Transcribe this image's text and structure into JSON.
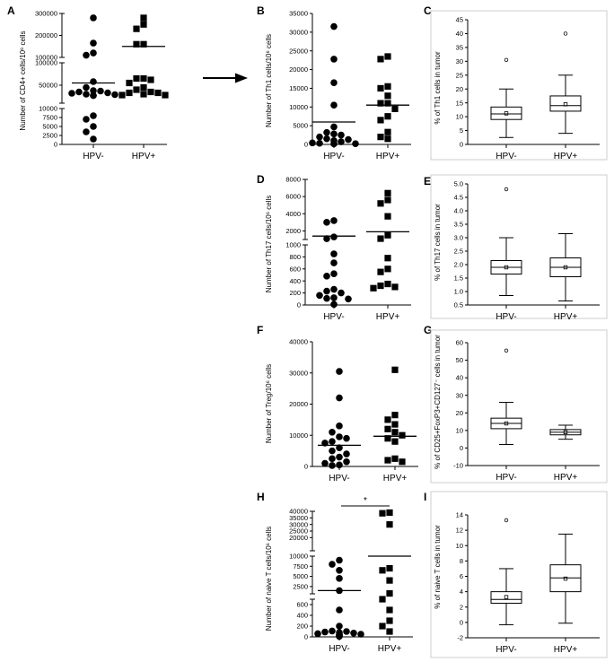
{
  "colors": {
    "ink": "#000000",
    "frame": "#cccccc"
  },
  "arrow": true,
  "chart_data": [
    {
      "panel": "A",
      "type": "scatter",
      "ylabel": "Number of CD4+ cells/10⁶ cells",
      "categories": [
        "HPV-",
        "HPV+"
      ],
      "y_axis": {
        "type": "broken",
        "segments": [
          {
            "range": [
              0,
              10000
            ],
            "ticks": [
              0,
              2500,
              5000,
              7500,
              10000
            ],
            "tick_labels": [
              "0",
              "2500",
              "5000",
              "7500",
              "10000"
            ]
          },
          {
            "range": [
              10000,
              100000
            ],
            "ticks": [
              50000,
              100000
            ],
            "tick_labels": [
              "50000",
              "100000"
            ]
          },
          {
            "range": [
              100000,
              300000
            ],
            "ticks": [
              100000,
              200000,
              300000
            ],
            "tick_labels": [
              "100000",
              "200000",
              "300000"
            ]
          }
        ]
      },
      "series": [
        {
          "category": "HPV-",
          "marker": "circle",
          "values": [
            280000,
            165000,
            120000,
            110000,
            58000,
            45000,
            38000,
            37000,
            35000,
            33000,
            32000,
            30000,
            29000,
            27000,
            27000,
            8000,
            7000,
            5000,
            3500,
            1500
          ]
        },
        {
          "category": "HPV+",
          "marker": "square",
          "values": [
            280000,
            250000,
            230000,
            160000,
            160000,
            65000,
            65000,
            62000,
            55000,
            45000,
            40000,
            35000,
            33000,
            33000,
            30000,
            28000,
            28000
          ]
        }
      ],
      "means": [
        55000,
        150000
      ]
    },
    {
      "panel": "B",
      "type": "scatter",
      "ylabel": "Number of Th1 cells/10⁶ cells",
      "categories": [
        "HPV-",
        "HPV+"
      ],
      "ylim": [
        0,
        35000
      ],
      "ticks": [
        0,
        5000,
        10000,
        15000,
        20000,
        25000,
        30000,
        35000
      ],
      "series": [
        {
          "category": "HPV-",
          "marker": "circle",
          "values": [
            31500,
            22800,
            16500,
            10500,
            4700,
            3200,
            2800,
            2500,
            2000,
            1500,
            1300,
            1000,
            700,
            400,
            300,
            200,
            150
          ]
        },
        {
          "category": "HPV+",
          "marker": "square",
          "values": [
            23500,
            22800,
            15500,
            15000,
            13000,
            11000,
            11000,
            9500,
            7500,
            6500,
            3300,
            2000,
            1500
          ]
        }
      ],
      "means": [
        6000,
        10500
      ]
    },
    {
      "panel": "C",
      "type": "box",
      "ylabel": "% of Th1 cells in tumor",
      "categories": [
        "HPV-",
        "HPV+"
      ],
      "ylim": [
        0,
        45
      ],
      "ticks": [
        0,
        5,
        10,
        15,
        20,
        25,
        30,
        35,
        40,
        45
      ],
      "boxes": [
        {
          "category": "HPV-",
          "whisker_low": 2.5,
          "q1": 9,
          "median": 11,
          "q3": 13.5,
          "whisker_high": 20,
          "mean": 11.2,
          "outliers": [
            30.5
          ]
        },
        {
          "category": "HPV+",
          "whisker_low": 4,
          "q1": 12,
          "median": 14,
          "q3": 17.5,
          "whisker_high": 25,
          "mean": 14.5,
          "outliers": [
            40
          ]
        }
      ]
    },
    {
      "panel": "D",
      "type": "scatter",
      "ylabel": "Number of Th17 cells/10⁶ cells",
      "categories": [
        "HPV-",
        "HPV+"
      ],
      "y_axis": {
        "type": "broken",
        "segments": [
          {
            "range": [
              0,
              1000
            ],
            "ticks": [
              0,
              200,
              400,
              600,
              800,
              1000
            ],
            "tick_labels": [
              "0",
              "200",
              "400",
              "600",
              "800",
              "1000"
            ]
          },
          {
            "range": [
              1000,
              8000
            ],
            "ticks": [
              2000,
              4000,
              6000,
              8000
            ],
            "tick_labels": [
              "2000",
              "4000",
              "6000",
              "8000"
            ]
          }
        ]
      },
      "series": [
        {
          "category": "HPV-",
          "marker": "circle",
          "values": [
            3200,
            3000,
            1300,
            1100,
            850,
            700,
            520,
            480,
            260,
            230,
            200,
            160,
            120,
            110,
            100,
            10
          ]
        },
        {
          "category": "HPV+",
          "marker": "square",
          "values": [
            6400,
            5600,
            5200,
            3700,
            1500,
            1100,
            780,
            600,
            550,
            350,
            320,
            300,
            280
          ]
        }
      ],
      "means": [
        1400,
        1900
      ]
    },
    {
      "panel": "E",
      "type": "box",
      "ylabel": "% of Th17 cells in tumor",
      "categories": [
        "HPV-",
        "HPV+"
      ],
      "ylim": [
        0.5,
        5.0
      ],
      "ticks": [
        0.5,
        1.0,
        1.5,
        2.0,
        2.5,
        3.0,
        3.5,
        4.0,
        4.5,
        5.0
      ],
      "tick_labels": [
        "0.5",
        "1.0",
        "1.5",
        "2.0",
        "2.5",
        "3.0",
        "3.5",
        "4.0",
        "4.5",
        "5.0"
      ],
      "boxes": [
        {
          "category": "HPV-",
          "whisker_low": 0.85,
          "q1": 1.65,
          "median": 1.9,
          "q3": 2.15,
          "whisker_high": 3.0,
          "mean": 1.9,
          "outliers": [
            4.8
          ]
        },
        {
          "category": "HPV+",
          "whisker_low": 0.65,
          "q1": 1.55,
          "median": 1.9,
          "q3": 2.25,
          "whisker_high": 3.15,
          "mean": 1.9,
          "outliers": []
        }
      ]
    },
    {
      "panel": "F",
      "type": "scatter",
      "ylabel": "Number of Treg/10⁶ cells",
      "categories": [
        "HPV-",
        "HPV+"
      ],
      "ylim": [
        0,
        40000
      ],
      "ticks": [
        0,
        10000,
        20000,
        30000,
        40000
      ],
      "series": [
        {
          "category": "HPV-",
          "marker": "circle",
          "values": [
            30500,
            22000,
            13000,
            11000,
            9500,
            9000,
            8000,
            7500,
            6000,
            5000,
            4000,
            3000,
            2500,
            1500,
            1000,
            500,
            300
          ]
        },
        {
          "category": "HPV+",
          "marker": "square",
          "values": [
            31000,
            16500,
            15000,
            13500,
            12000,
            11000,
            10000,
            9000,
            8000,
            2500,
            2000,
            1500
          ]
        }
      ],
      "means": [
        6800,
        9700
      ]
    },
    {
      "panel": "G",
      "type": "box",
      "ylabel": "% of CD25+FoxP3+CD127⁻ cells in tumor",
      "categories": [
        "HPV-",
        "HPV+"
      ],
      "ylim": [
        -10,
        60
      ],
      "ticks": [
        -10,
        0,
        10,
        20,
        30,
        40,
        50,
        60
      ],
      "boxes": [
        {
          "category": "HPV-",
          "whisker_low": 2,
          "q1": 11,
          "median": 14,
          "q3": 17,
          "whisker_high": 26,
          "mean": 14,
          "outliers": [
            55.5
          ]
        },
        {
          "category": "HPV+",
          "whisker_low": 5,
          "q1": 7.5,
          "median": 9,
          "q3": 10.5,
          "whisker_high": 13,
          "mean": 9,
          "outliers": []
        }
      ]
    },
    {
      "panel": "H",
      "type": "scatter",
      "ylabel": "Number of naive T cells/10⁶ cells",
      "categories": [
        "HPV-",
        "HPV+"
      ],
      "significance": "*",
      "y_axis": {
        "type": "broken",
        "segments": [
          {
            "range": [
              0,
              700
            ],
            "ticks": [
              0,
              200,
              400,
              600
            ],
            "tick_labels": [
              "0",
              "200",
              "400",
              "600"
            ]
          },
          {
            "range": [
              700,
              10000
            ],
            "ticks": [
              2500,
              5000,
              7500,
              10000
            ],
            "tick_labels": [
              "2500",
              "5000",
              "7500",
              "10000"
            ]
          },
          {
            "range": [
              10000,
              40000
            ],
            "ticks": [
              20000,
              25000,
              30000,
              35000,
              40000
            ],
            "tick_labels": [
              "20000",
              "25000",
              "30000",
              "35000",
              "40000"
            ]
          }
        ]
      },
      "series": [
        {
          "category": "HPV-",
          "marker": "circle",
          "values": [
            9000,
            8000,
            6500,
            4500,
            1500,
            500,
            200,
            110,
            100,
            90,
            80,
            70,
            60,
            50,
            40,
            30,
            20,
            10
          ]
        },
        {
          "category": "HPV+",
          "marker": "square",
          "values": [
            39000,
            38500,
            30000,
            7000,
            6500,
            4000,
            800,
            700,
            500,
            300,
            200,
            100
          ]
        }
      ],
      "means": [
        1500,
        10000
      ]
    },
    {
      "panel": "I",
      "type": "box",
      "ylabel": "% of naive T cells in tumor",
      "categories": [
        "HPV-",
        "HPV+"
      ],
      "ylim": [
        -2,
        14
      ],
      "ticks": [
        -2,
        0,
        2,
        4,
        6,
        8,
        10,
        12,
        14
      ],
      "boxes": [
        {
          "category": "HPV-",
          "whisker_low": -0.3,
          "q1": 2.5,
          "median": 3,
          "q3": 4,
          "whisker_high": 7,
          "mean": 3.3,
          "outliers": [
            13.3
          ]
        },
        {
          "category": "HPV+",
          "whisker_low": -0.1,
          "q1": 4,
          "median": 5.8,
          "q3": 7.5,
          "whisker_high": 11.5,
          "mean": 5.7,
          "outliers": []
        }
      ]
    }
  ]
}
